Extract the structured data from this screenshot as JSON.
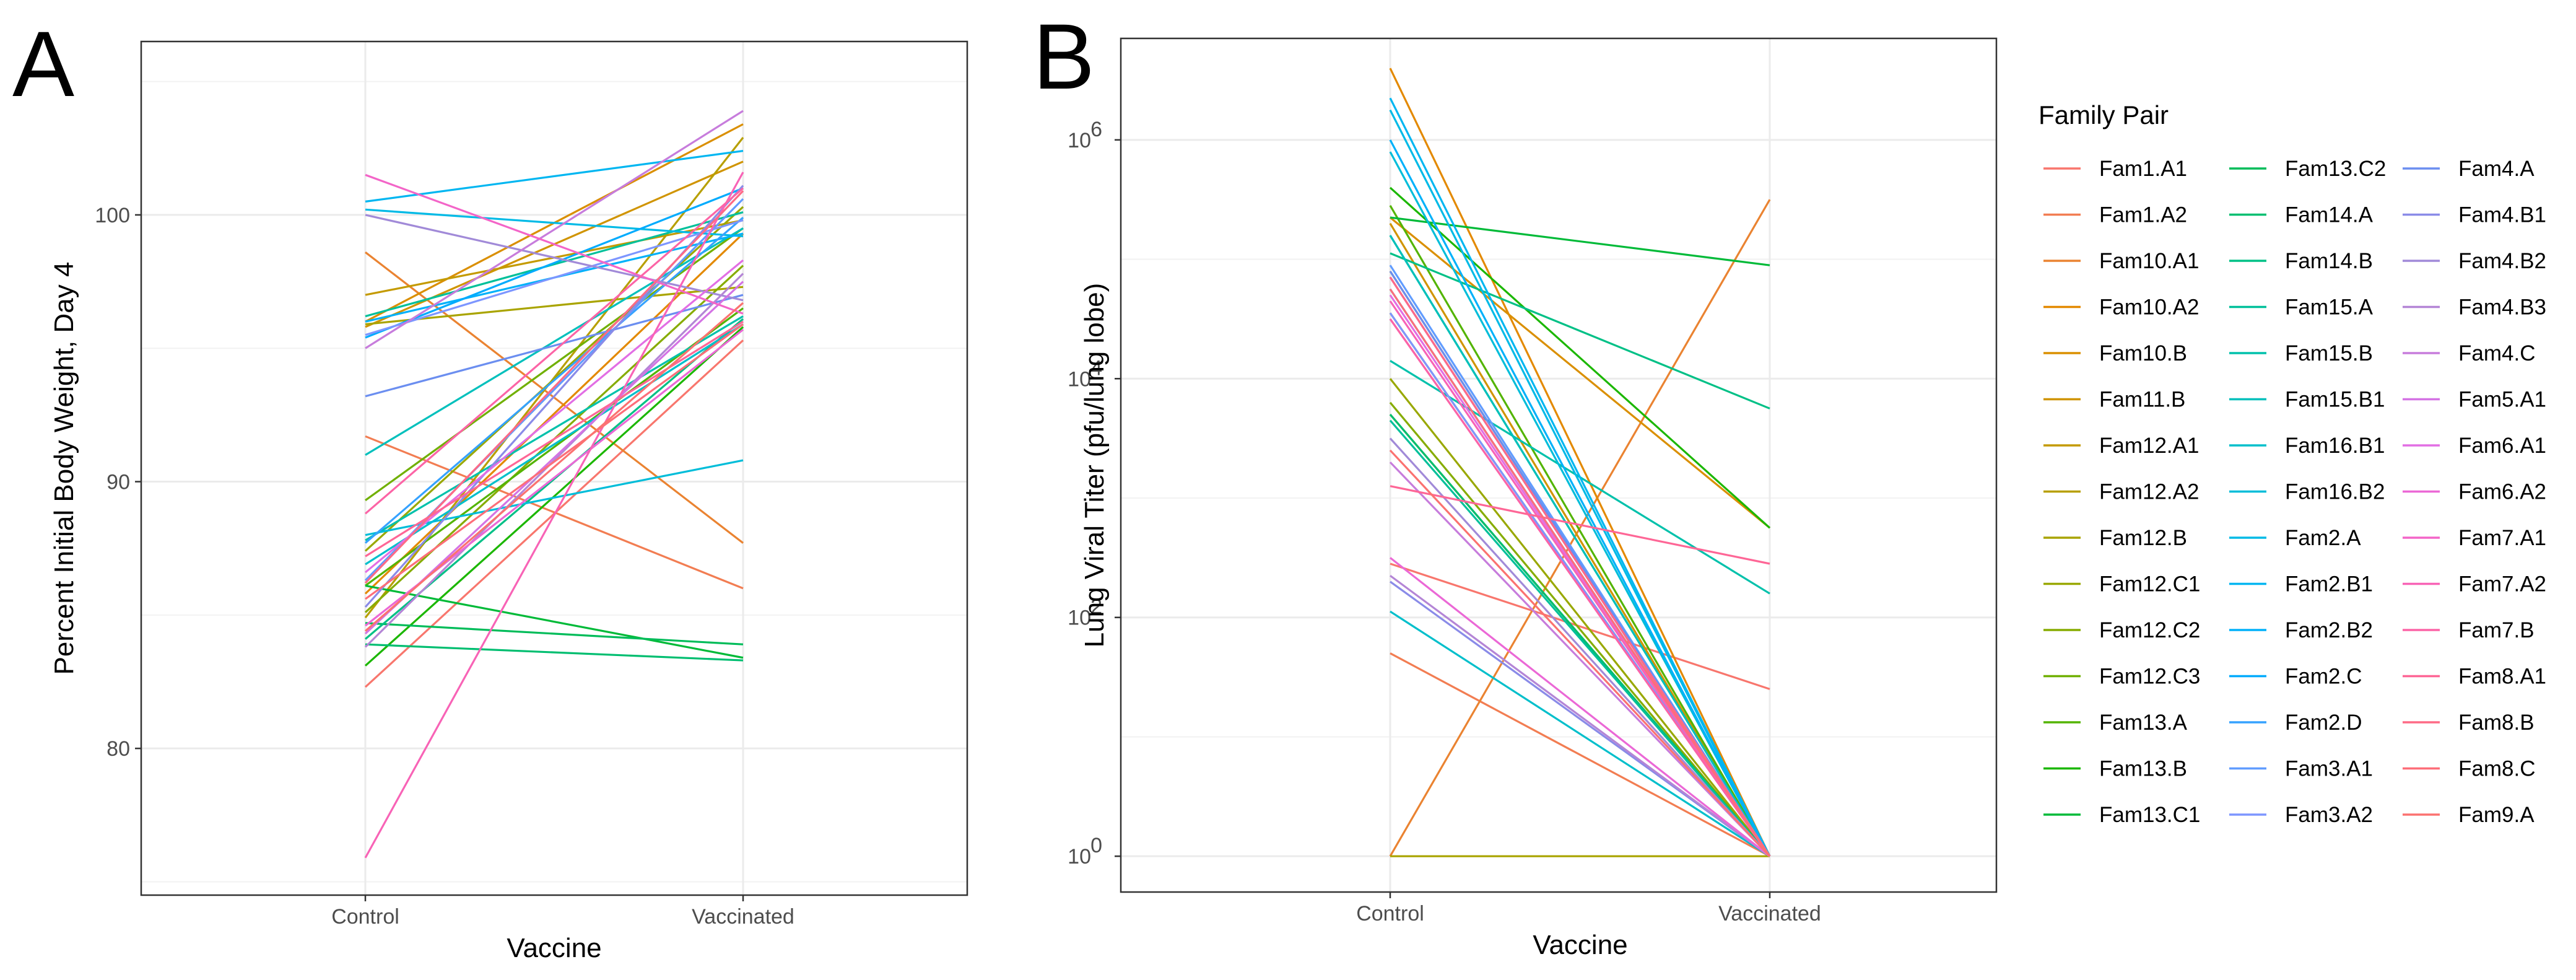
{
  "chart_data": [
    {
      "panel": "A",
      "type": "line",
      "ylabel": "Percent Initial Body Weight, Day 4",
      "xlabel": "Vaccine",
      "categories": [
        "Control",
        "Vaccinated"
      ],
      "ylim": [
        74.5,
        106.5
      ],
      "yticks": [
        80,
        90,
        100
      ],
      "grid": true,
      "series": [
        {
          "name": "Fam1.A1",
          "values": [
            82.3,
            95.3
          ]
        },
        {
          "name": "Fam1.A2",
          "values": [
            91.7,
            86.0
          ]
        },
        {
          "name": "Fam10.A1",
          "values": [
            98.6,
            87.7
          ]
        },
        {
          "name": "Fam10.A2",
          "values": [
            85.8,
            99.3
          ]
        },
        {
          "name": "Fam10.B",
          "values": [
            96.0,
            103.4
          ]
        },
        {
          "name": "Fam11.B",
          "values": [
            95.8,
            102.0
          ]
        },
        {
          "name": "Fam12.A1",
          "values": [
            97.0,
            99.8
          ]
        },
        {
          "name": "Fam12.A2",
          "values": [
            84.9,
            102.9
          ]
        },
        {
          "name": "Fam12.B",
          "values": [
            95.9,
            97.3
          ]
        },
        {
          "name": "Fam12.C1",
          "values": [
            87.4,
            100.3
          ]
        },
        {
          "name": "Fam12.C2",
          "values": [
            85.1,
            98.1
          ]
        },
        {
          "name": "Fam12.C3",
          "values": [
            89.3,
            99.5
          ]
        },
        {
          "name": "Fam13.A",
          "values": [
            86.1,
            96.5
          ]
        },
        {
          "name": "Fam13.B",
          "values": [
            83.1,
            95.8
          ]
        },
        {
          "name": "Fam13.C1",
          "values": [
            86.1,
            83.4
          ]
        },
        {
          "name": "Fam13.C2",
          "values": [
            84.7,
            83.9
          ]
        },
        {
          "name": "Fam14.A",
          "values": [
            83.9,
            83.3
          ]
        },
        {
          "name": "Fam14.B",
          "values": [
            84.1,
            96.1
          ]
        },
        {
          "name": "Fam15.A",
          "values": [
            96.2,
            100.1
          ]
        },
        {
          "name": "Fam15.B",
          "values": [
            87.8,
            96.2
          ]
        },
        {
          "name": "Fam15.B1",
          "values": [
            91.0,
            99.5
          ]
        },
        {
          "name": "Fam16.B1",
          "values": [
            86.9,
            95.9
          ]
        },
        {
          "name": "Fam16.B2",
          "values": [
            88.0,
            90.8
          ]
        },
        {
          "name": "Fam2.A",
          "values": [
            100.2,
            99.2
          ]
        },
        {
          "name": "Fam2.B1",
          "values": [
            100.5,
            102.4
          ]
        },
        {
          "name": "Fam2.B2",
          "values": [
            96.0,
            99.3
          ]
        },
        {
          "name": "Fam2.C",
          "values": [
            95.4,
            101.0
          ]
        },
        {
          "name": "Fam2.D",
          "values": [
            87.7,
            99.9
          ]
        },
        {
          "name": "Fam3.A1",
          "values": [
            86.3,
            100.6
          ]
        },
        {
          "name": "Fam3.A2",
          "values": [
            95.5,
            99.8
          ]
        },
        {
          "name": "Fam4.A",
          "values": [
            93.2,
            97.0
          ]
        },
        {
          "name": "Fam4.B1",
          "values": [
            85.3,
            101.1
          ]
        },
        {
          "name": "Fam4.B2",
          "values": [
            100.0,
            96.8
          ]
        },
        {
          "name": "Fam4.B3",
          "values": [
            83.8,
            97.8
          ]
        },
        {
          "name": "Fam4.C",
          "values": [
            95.0,
            103.9
          ]
        },
        {
          "name": "Fam5.A1",
          "values": [
            84.3,
            97.5
          ]
        },
        {
          "name": "Fam6.A1",
          "values": [
            86.6,
            98.3
          ]
        },
        {
          "name": "Fam6.A2",
          "values": [
            84.6,
            95.7
          ]
        },
        {
          "name": "Fam7.A1",
          "values": [
            101.5,
            96.3
          ]
        },
        {
          "name": "Fam7.A2",
          "values": [
            75.9,
            101.6
          ]
        },
        {
          "name": "Fam7.B",
          "values": [
            88.8,
            101.0
          ]
        },
        {
          "name": "Fam8.A1",
          "values": [
            87.2,
            96.0
          ]
        },
        {
          "name": "Fam8.B",
          "values": [
            86.2,
            100.9
          ]
        },
        {
          "name": "Fam8.C",
          "values": [
            85.6,
            95.9
          ]
        },
        {
          "name": "Fam9.A",
          "values": [
            84.4,
            96.7
          ]
        }
      ]
    },
    {
      "panel": "B",
      "type": "line",
      "ylabel": "Lung Viral Titer (pfu/lung lobe)",
      "xlabel": "Vaccine",
      "categories": [
        "Control",
        "Vaccinated"
      ],
      "yscale": "log10",
      "ylim_log10": [
        -0.3,
        6.85
      ],
      "yticks": [
        {
          "base": "10",
          "exp": "0",
          "log10": 0
        },
        {
          "base": "10",
          "exp": "2",
          "log10": 2
        },
        {
          "base": "10",
          "exp": "4",
          "log10": 4
        },
        {
          "base": "10",
          "exp": "6",
          "log10": 6
        }
      ],
      "grid": true,
      "series_log10": [
        {
          "name": "Fam1.A1",
          "values": [
            2.45,
            1.4
          ]
        },
        {
          "name": "Fam1.A2",
          "values": [
            1.7,
            0
          ]
        },
        {
          "name": "Fam10.A1",
          "values": [
            0,
            5.5
          ]
        },
        {
          "name": "Fam10.A2",
          "values": [
            6.6,
            0
          ]
        },
        {
          "name": "Fam10.B",
          "values": [
            5.35,
            2.75
          ]
        },
        {
          "name": "Fam11.B",
          "values": [
            5.3,
            0
          ]
        },
        {
          "name": "Fam12.A1",
          "values": [
            4.9,
            0
          ]
        },
        {
          "name": "Fam12.A2",
          "values": [
            4.55,
            0
          ]
        },
        {
          "name": "Fam12.B",
          "values": [
            0,
            0
          ]
        },
        {
          "name": "Fam12.C1",
          "values": [
            4.0,
            0
          ]
        },
        {
          "name": "Fam12.C2",
          "values": [
            3.8,
            0
          ]
        },
        {
          "name": "Fam12.C3",
          "values": [
            3.7,
            0
          ]
        },
        {
          "name": "Fam13.A",
          "values": [
            5.45,
            0
          ]
        },
        {
          "name": "Fam13.B",
          "values": [
            5.6,
            2.75
          ]
        },
        {
          "name": "Fam13.C1",
          "values": [
            5.35,
            4.95
          ]
        },
        {
          "name": "Fam13.C2",
          "values": [
            5.2,
            0
          ]
        },
        {
          "name": "Fam14.A",
          "values": [
            3.7,
            0
          ]
        },
        {
          "name": "Fam14.B",
          "values": [
            5.05,
            3.75
          ]
        },
        {
          "name": "Fam15.A",
          "values": [
            3.65,
            0
          ]
        },
        {
          "name": "Fam15.B",
          "values": [
            4.15,
            2.2
          ]
        },
        {
          "name": "Fam15.B1",
          "values": [
            5.2,
            0
          ]
        },
        {
          "name": "Fam16.B1",
          "values": [
            2.05,
            0
          ]
        },
        {
          "name": "Fam16.B2",
          "values": [
            5.9,
            0
          ]
        },
        {
          "name": "Fam2.A",
          "values": [
            6.25,
            0
          ]
        },
        {
          "name": "Fam2.B1",
          "values": [
            6.35,
            0
          ]
        },
        {
          "name": "Fam2.B2",
          "values": [
            6.0,
            0
          ]
        },
        {
          "name": "Fam2.C",
          "values": [
            4.75,
            0
          ]
        },
        {
          "name": "Fam2.D",
          "values": [
            4.85,
            0
          ]
        },
        {
          "name": "Fam3.A1",
          "values": [
            4.95,
            0
          ]
        },
        {
          "name": "Fam3.A2",
          "values": [
            4.55,
            0
          ]
        },
        {
          "name": "Fam4.A",
          "values": [
            4.9,
            0
          ]
        },
        {
          "name": "Fam4.B1",
          "values": [
            2.3,
            0
          ]
        },
        {
          "name": "Fam4.B2",
          "values": [
            3.5,
            0
          ]
        },
        {
          "name": "Fam4.B3",
          "values": [
            2.35,
            0
          ]
        },
        {
          "name": "Fam4.C",
          "values": [
            3.3,
            0
          ]
        },
        {
          "name": "Fam5.A1",
          "values": [
            4.5,
            0
          ]
        },
        {
          "name": "Fam6.A1",
          "values": [
            4.7,
            0
          ]
        },
        {
          "name": "Fam6.A2",
          "values": [
            2.5,
            0
          ]
        },
        {
          "name": "Fam7.A1",
          "values": [
            4.85,
            0
          ]
        },
        {
          "name": "Fam7.A2",
          "values": [
            4.65,
            0
          ]
        },
        {
          "name": "Fam7.B",
          "values": [
            4.5,
            0
          ]
        },
        {
          "name": "Fam8.A1",
          "values": [
            3.1,
            2.45
          ]
        },
        {
          "name": "Fam8.B",
          "values": [
            4.85,
            0
          ]
        },
        {
          "name": "Fam8.C",
          "values": [
            4.75,
            0
          ]
        },
        {
          "name": "Fam9.A",
          "values": [
            3.4,
            0
          ]
        }
      ]
    }
  ],
  "legend": {
    "title": "Family Pair",
    "placement": "right",
    "columns": 3,
    "items": [
      {
        "name": "Fam1.A1",
        "color": "#F8766D"
      },
      {
        "name": "Fam1.A2",
        "color": "#F27D52"
      },
      {
        "name": "Fam10.A1",
        "color": "#EA8331"
      },
      {
        "name": "Fam10.A2",
        "color": "#E38900"
      },
      {
        "name": "Fam10.B",
        "color": "#DA8F00"
      },
      {
        "name": "Fam11.B",
        "color": "#D09400"
      },
      {
        "name": "Fam12.A1",
        "color": "#C49A00"
      },
      {
        "name": "Fam12.A2",
        "color": "#B79F00"
      },
      {
        "name": "Fam12.B",
        "color": "#A9A400"
      },
      {
        "name": "Fam12.C1",
        "color": "#99A800"
      },
      {
        "name": "Fam12.C2",
        "color": "#86AC00"
      },
      {
        "name": "Fam12.C3",
        "color": "#70B000"
      },
      {
        "name": "Fam13.A",
        "color": "#53B400"
      },
      {
        "name": "Fam13.B",
        "color": "#1BB700"
      },
      {
        "name": "Fam13.C1",
        "color": "#00BA38"
      },
      {
        "name": "Fam13.C2",
        "color": "#00BC59"
      },
      {
        "name": "Fam14.A",
        "color": "#00BE70"
      },
      {
        "name": "Fam14.B",
        "color": "#00C086"
      },
      {
        "name": "Fam15.A",
        "color": "#00C09A"
      },
      {
        "name": "Fam15.B",
        "color": "#00C1AB"
      },
      {
        "name": "Fam15.B1",
        "color": "#00C0BC"
      },
      {
        "name": "Fam16.B1",
        "color": "#00BFCB"
      },
      {
        "name": "Fam16.B2",
        "color": "#00BDD9"
      },
      {
        "name": "Fam2.A",
        "color": "#00BAE6"
      },
      {
        "name": "Fam2.B1",
        "color": "#00B6F1"
      },
      {
        "name": "Fam2.B2",
        "color": "#00B1FA"
      },
      {
        "name": "Fam2.C",
        "color": "#00ABFD"
      },
      {
        "name": "Fam2.D",
        "color": "#35A2FF"
      },
      {
        "name": "Fam3.A1",
        "color": "#619CFF"
      },
      {
        "name": "Fam3.A2",
        "color": "#7D96FF"
      },
      {
        "name": "Fam4.A",
        "color": "#6B8EF0"
      },
      {
        "name": "Fam4.B1",
        "color": "#8A8BE8"
      },
      {
        "name": "Fam4.B2",
        "color": "#A18AD8"
      },
      {
        "name": "Fam4.B3",
        "color": "#B485D6"
      },
      {
        "name": "Fam4.C",
        "color": "#C77CDC"
      },
      {
        "name": "Fam5.A1",
        "color": "#D473E4"
      },
      {
        "name": "Fam6.A1",
        "color": "#E26EE4"
      },
      {
        "name": "Fam6.A2",
        "color": "#EB68D6"
      },
      {
        "name": "Fam7.A1",
        "color": "#F365C8"
      },
      {
        "name": "Fam7.A2",
        "color": "#F863B6"
      },
      {
        "name": "Fam7.B",
        "color": "#FC64A6"
      },
      {
        "name": "Fam8.A1",
        "color": "#FE6696"
      },
      {
        "name": "Fam8.B",
        "color": "#FE6A86"
      },
      {
        "name": "Fam8.C",
        "color": "#FD6E79"
      },
      {
        "name": "Fam9.A",
        "color": "#FB7270"
      }
    ]
  }
}
